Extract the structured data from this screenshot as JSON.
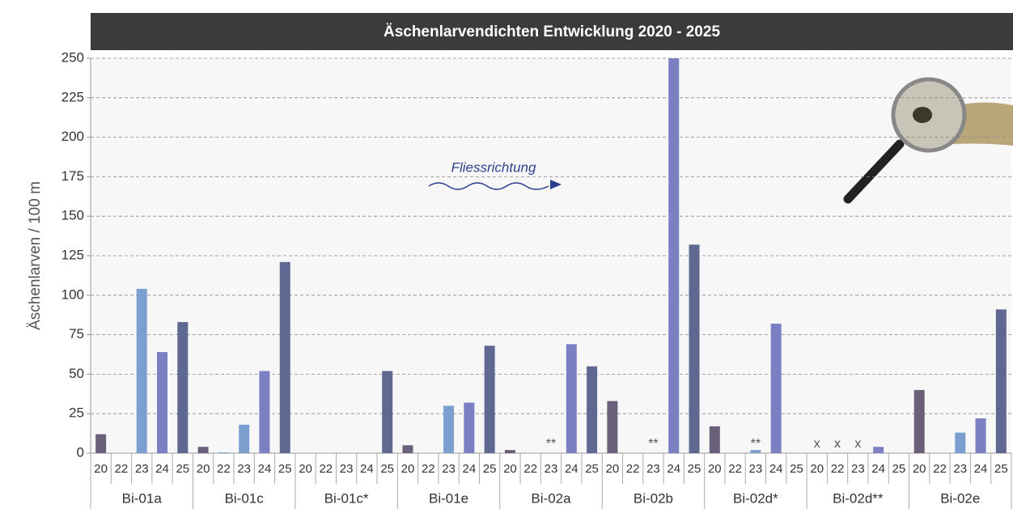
{
  "chart_data": {
    "type": "bar",
    "title": "Äschenlarvendichten Entwicklung 2020 - 2025",
    "y_label": "Äschenlarven / 100 m",
    "annotation": "Fliessrichtung",
    "categories": [
      "Bi-01a",
      "Bi-01c",
      "Bi-01c*",
      "Bi-01e",
      "Bi-02a",
      "Bi-02b",
      "Bi-02d*",
      "Bi-02d**",
      "Bi-02e"
    ],
    "series": [
      {
        "name": "20",
        "color": "#6b6079",
        "values": [
          12,
          4,
          null,
          5,
          2,
          33,
          17,
          null,
          40
        ],
        "notes": [
          null,
          null,
          null,
          null,
          null,
          null,
          null,
          "x",
          null
        ]
      },
      {
        "name": "22",
        "color": "#7fa3d0",
        "values": [
          null,
          0.5,
          null,
          null,
          null,
          null,
          null,
          null,
          null
        ],
        "notes": [
          null,
          null,
          null,
          null,
          null,
          null,
          null,
          "x",
          null
        ]
      },
      {
        "name": "23",
        "color": "#7b9fcf",
        "values": [
          104,
          18,
          null,
          30,
          null,
          null,
          2,
          null,
          13
        ],
        "notes": [
          null,
          null,
          null,
          null,
          "**",
          "**",
          "**",
          "x",
          null
        ]
      },
      {
        "name": "24",
        "color": "#7a80c2",
        "values": [
          64,
          52,
          null,
          32,
          69,
          250,
          82,
          4,
          22
        ],
        "notes": [
          null,
          null,
          null,
          null,
          null,
          null,
          null,
          null,
          null
        ]
      },
      {
        "name": "25",
        "color": "#5e6890",
        "values": [
          83,
          121,
          52,
          68,
          55,
          132,
          null,
          null,
          91
        ],
        "notes": [
          null,
          null,
          null,
          null,
          null,
          null,
          null,
          null,
          null
        ]
      }
    ],
    "ylim": [
      0,
      250
    ],
    "yticks": [
      0,
      25,
      50,
      75,
      100,
      125,
      150,
      175,
      200,
      225,
      250
    ],
    "grid": true
  }
}
